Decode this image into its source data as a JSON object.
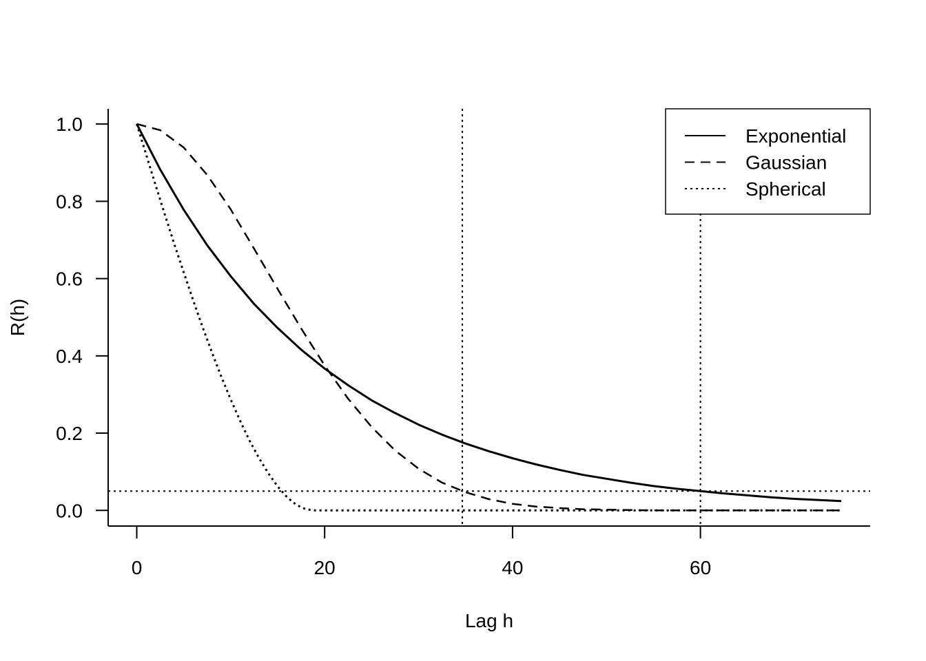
{
  "chart_data": {
    "type": "line",
    "xlabel": "Lag h",
    "ylabel": "R(h)",
    "xlim": [
      -3,
      78
    ],
    "ylim": [
      -0.04,
      1.04
    ],
    "x_ticks": [
      0,
      20,
      40,
      60
    ],
    "y_ticks": [
      0.0,
      0.2,
      0.4,
      0.6,
      0.8,
      1.0
    ],
    "x_tick_labels": [
      "0",
      "20",
      "40",
      "60"
    ],
    "y_tick_labels": [
      "0.0",
      "0.2",
      "0.4",
      "0.6",
      "0.8",
      "1.0"
    ],
    "grid": false,
    "legend_position": "top-right",
    "series": [
      {
        "name": "Exponential",
        "line_style": "solid",
        "x": [
          0,
          2.5,
          5,
          7.5,
          10,
          12.5,
          15,
          17.5,
          20,
          22.5,
          25,
          27.5,
          30,
          32.5,
          35,
          37.5,
          40,
          42.5,
          45,
          47.5,
          50,
          52.5,
          55,
          57.5,
          60,
          62.5,
          65,
          67.5,
          70,
          72.5,
          75
        ],
        "y": [
          1.0,
          0.882,
          0.778,
          0.686,
          0.606,
          0.534,
          0.472,
          0.416,
          0.367,
          0.324,
          0.285,
          0.252,
          0.222,
          0.196,
          0.173,
          0.153,
          0.135,
          0.119,
          0.105,
          0.092,
          0.082,
          0.072,
          0.063,
          0.056,
          0.05,
          0.044,
          0.039,
          0.034,
          0.03,
          0.027,
          0.024
        ]
      },
      {
        "name": "Gaussian",
        "line_style": "dashed",
        "x": [
          0,
          2.5,
          5,
          7.5,
          10,
          12.5,
          15,
          17.5,
          20,
          22.5,
          25,
          27.5,
          30,
          32.5,
          35,
          37.5,
          40,
          42.5,
          45,
          47.5,
          50,
          55,
          60,
          65,
          70,
          75
        ],
        "y": [
          1.0,
          0.984,
          0.939,
          0.868,
          0.779,
          0.677,
          0.573,
          0.471,
          0.375,
          0.289,
          0.216,
          0.155,
          0.108,
          0.072,
          0.047,
          0.029,
          0.017,
          0.01,
          0.006,
          0.003,
          0.002,
          0.0,
          0.0,
          0.0,
          0.0,
          0.0
        ]
      },
      {
        "name": "Spherical",
        "line_style": "dotted",
        "x": [
          0,
          1,
          2,
          3,
          4,
          5,
          6,
          7,
          8,
          9,
          10,
          11,
          12,
          13,
          14,
          15,
          16,
          17,
          18,
          19,
          20,
          30,
          40,
          50,
          60,
          75
        ],
        "y": [
          1.0,
          0.921,
          0.842,
          0.765,
          0.689,
          0.616,
          0.544,
          0.475,
          0.409,
          0.346,
          0.287,
          0.232,
          0.181,
          0.136,
          0.096,
          0.062,
          0.034,
          0.014,
          0.003,
          0.0,
          0.0,
          0.0,
          0.0,
          0.0,
          0.0,
          0.0
        ]
      }
    ],
    "reference_lines": [
      {
        "orientation": "horizontal",
        "value": 0.05,
        "line_style": "dotted"
      },
      {
        "orientation": "vertical",
        "value": 34.66,
        "line_style": "dotted"
      },
      {
        "orientation": "vertical",
        "value": 60,
        "line_style": "dotted"
      }
    ]
  }
}
